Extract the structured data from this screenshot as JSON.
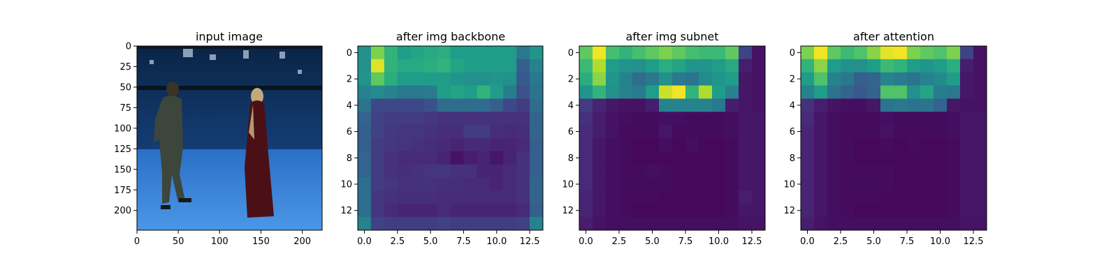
{
  "chart_data": [
    {
      "type": "image",
      "title": "input image",
      "xlim": [
        0,
        224
      ],
      "ylim": [
        224,
        0
      ],
      "xticks": [
        0,
        50,
        100,
        150,
        200
      ],
      "yticks": [
        0,
        25,
        50,
        75,
        100,
        125,
        150,
        175,
        200
      ],
      "xtick_labels": [
        "0",
        "50",
        "100",
        "150",
        "200"
      ],
      "ytick_labels": [
        "0",
        "25",
        "50",
        "75",
        "100",
        "125",
        "150",
        "175",
        "200"
      ],
      "colors": {
        "wall": "#0c2b55",
        "floor": "#2c74cc",
        "floor_light": "#4b97e6",
        "rig": "#0a1420"
      }
    },
    {
      "type": "heatmap",
      "title": "after img backbone",
      "colormap": "viridis",
      "xlim": [
        -0.5,
        13.5
      ],
      "ylim": [
        13.5,
        -0.5
      ],
      "xticks": [
        0,
        2.5,
        5,
        7.5,
        10,
        12.5
      ],
      "yticks": [
        0,
        2,
        4,
        6,
        8,
        10,
        12
      ],
      "xtick_labels": [
        "0.0",
        "2.5",
        "5.0",
        "7.5",
        "10.0",
        "12.5"
      ],
      "ytick_labels": [
        "0",
        "2",
        "4",
        "6",
        "8",
        "10",
        "12"
      ],
      "values": [
        [
          0.5,
          0.8,
          0.65,
          0.55,
          0.58,
          0.6,
          0.62,
          0.55,
          0.55,
          0.55,
          0.55,
          0.55,
          0.4,
          0.52
        ],
        [
          0.5,
          0.95,
          0.65,
          0.6,
          0.6,
          0.62,
          0.65,
          0.58,
          0.56,
          0.55,
          0.55,
          0.55,
          0.3,
          0.45
        ],
        [
          0.52,
          0.75,
          0.62,
          0.55,
          0.55,
          0.55,
          0.55,
          0.52,
          0.5,
          0.5,
          0.52,
          0.5,
          0.28,
          0.4
        ],
        [
          0.45,
          0.48,
          0.45,
          0.4,
          0.4,
          0.42,
          0.55,
          0.58,
          0.55,
          0.65,
          0.55,
          0.42,
          0.25,
          0.38
        ],
        [
          0.38,
          0.22,
          0.22,
          0.22,
          0.22,
          0.25,
          0.35,
          0.35,
          0.35,
          0.35,
          0.3,
          0.22,
          0.18,
          0.35
        ],
        [
          0.32,
          0.2,
          0.18,
          0.18,
          0.18,
          0.16,
          0.14,
          0.14,
          0.14,
          0.14,
          0.14,
          0.14,
          0.14,
          0.32
        ],
        [
          0.3,
          0.2,
          0.17,
          0.15,
          0.15,
          0.14,
          0.13,
          0.13,
          0.18,
          0.18,
          0.13,
          0.12,
          0.13,
          0.32
        ],
        [
          0.3,
          0.18,
          0.16,
          0.15,
          0.14,
          0.13,
          0.12,
          0.1,
          0.12,
          0.12,
          0.1,
          0.1,
          0.12,
          0.3
        ],
        [
          0.32,
          0.18,
          0.14,
          0.12,
          0.12,
          0.12,
          0.1,
          0.05,
          0.08,
          0.1,
          0.06,
          0.1,
          0.14,
          0.3
        ],
        [
          0.32,
          0.18,
          0.14,
          0.13,
          0.14,
          0.15,
          0.16,
          0.14,
          0.14,
          0.1,
          0.1,
          0.12,
          0.14,
          0.3
        ],
        [
          0.36,
          0.18,
          0.16,
          0.14,
          0.14,
          0.14,
          0.13,
          0.13,
          0.12,
          0.12,
          0.1,
          0.12,
          0.14,
          0.32
        ],
        [
          0.36,
          0.16,
          0.14,
          0.13,
          0.13,
          0.13,
          0.12,
          0.12,
          0.12,
          0.12,
          0.12,
          0.12,
          0.14,
          0.32
        ],
        [
          0.36,
          0.16,
          0.12,
          0.1,
          0.1,
          0.1,
          0.12,
          0.1,
          0.1,
          0.1,
          0.1,
          0.1,
          0.12,
          0.3
        ],
        [
          0.45,
          0.2,
          0.18,
          0.18,
          0.18,
          0.18,
          0.2,
          0.18,
          0.18,
          0.18,
          0.18,
          0.18,
          0.2,
          0.45
        ]
      ]
    },
    {
      "type": "heatmap",
      "title": "after img subnet",
      "colormap": "viridis",
      "xlim": [
        -0.5,
        13.5
      ],
      "ylim": [
        13.5,
        -0.5
      ],
      "xticks": [
        0,
        2.5,
        5,
        7.5,
        10,
        12.5
      ],
      "yticks": [
        0,
        2,
        4,
        6,
        8,
        10,
        12
      ],
      "xtick_labels": [
        "0.0",
        "2.5",
        "5.0",
        "7.5",
        "10.0",
        "12.5"
      ],
      "ytick_labels": [
        "0",
        "2",
        "4",
        "6",
        "8",
        "10",
        "12"
      ],
      "values": [
        [
          0.75,
          0.98,
          0.7,
          0.65,
          0.7,
          0.75,
          0.8,
          0.75,
          0.7,
          0.68,
          0.68,
          0.75,
          0.2,
          0.05
        ],
        [
          0.68,
          0.88,
          0.55,
          0.52,
          0.5,
          0.55,
          0.62,
          0.58,
          0.52,
          0.52,
          0.55,
          0.6,
          0.08,
          0.05
        ],
        [
          0.62,
          0.82,
          0.52,
          0.45,
          0.35,
          0.4,
          0.5,
          0.4,
          0.38,
          0.48,
          0.52,
          0.55,
          0.06,
          0.05
        ],
        [
          0.52,
          0.65,
          0.5,
          0.45,
          0.42,
          0.55,
          0.92,
          0.98,
          0.65,
          0.88,
          0.55,
          0.45,
          0.06,
          0.05
        ],
        [
          0.18,
          0.1,
          0.06,
          0.05,
          0.05,
          0.08,
          0.45,
          0.45,
          0.45,
          0.45,
          0.4,
          0.08,
          0.06,
          0.05
        ],
        [
          0.14,
          0.08,
          0.05,
          0.04,
          0.03,
          0.03,
          0.04,
          0.04,
          0.03,
          0.03,
          0.03,
          0.04,
          0.06,
          0.06
        ],
        [
          0.12,
          0.08,
          0.05,
          0.03,
          0.03,
          0.03,
          0.06,
          0.03,
          0.03,
          0.03,
          0.03,
          0.04,
          0.06,
          0.06
        ],
        [
          0.12,
          0.06,
          0.04,
          0.03,
          0.02,
          0.02,
          0.04,
          0.02,
          0.04,
          0.02,
          0.02,
          0.03,
          0.06,
          0.06
        ],
        [
          0.12,
          0.06,
          0.04,
          0.03,
          0.02,
          0.02,
          0.02,
          0.02,
          0.02,
          0.02,
          0.02,
          0.03,
          0.06,
          0.06
        ],
        [
          0.12,
          0.06,
          0.04,
          0.03,
          0.03,
          0.04,
          0.03,
          0.02,
          0.02,
          0.02,
          0.02,
          0.03,
          0.06,
          0.06
        ],
        [
          0.12,
          0.06,
          0.04,
          0.03,
          0.03,
          0.03,
          0.03,
          0.02,
          0.02,
          0.02,
          0.02,
          0.03,
          0.06,
          0.06
        ],
        [
          0.1,
          0.06,
          0.04,
          0.03,
          0.03,
          0.03,
          0.02,
          0.02,
          0.02,
          0.02,
          0.02,
          0.03,
          0.08,
          0.06
        ],
        [
          0.1,
          0.06,
          0.04,
          0.03,
          0.02,
          0.02,
          0.02,
          0.02,
          0.02,
          0.02,
          0.02,
          0.03,
          0.06,
          0.06
        ],
        [
          0.08,
          0.05,
          0.04,
          0.04,
          0.04,
          0.04,
          0.04,
          0.04,
          0.04,
          0.04,
          0.04,
          0.04,
          0.05,
          0.05
        ]
      ]
    },
    {
      "type": "heatmap",
      "title": "after attention",
      "colormap": "viridis",
      "xlim": [
        -0.5,
        13.5
      ],
      "ylim": [
        13.5,
        -0.5
      ],
      "xticks": [
        0,
        2.5,
        5,
        7.5,
        10,
        12.5
      ],
      "yticks": [
        0,
        2,
        4,
        6,
        8,
        10,
        12
      ],
      "xtick_labels": [
        "0.0",
        "2.5",
        "5.0",
        "7.5",
        "10.0",
        "12.5"
      ],
      "ytick_labels": [
        "0",
        "2",
        "4",
        "6",
        "8",
        "10",
        "12"
      ],
      "values": [
        [
          0.8,
          0.98,
          0.75,
          0.68,
          0.72,
          0.82,
          0.96,
          0.98,
          0.8,
          0.75,
          0.72,
          0.8,
          0.2,
          0.05
        ],
        [
          0.65,
          0.82,
          0.55,
          0.5,
          0.5,
          0.55,
          0.68,
          0.65,
          0.55,
          0.52,
          0.55,
          0.62,
          0.08,
          0.05
        ],
        [
          0.55,
          0.72,
          0.45,
          0.4,
          0.3,
          0.32,
          0.45,
          0.42,
          0.38,
          0.45,
          0.48,
          0.55,
          0.06,
          0.05
        ],
        [
          0.45,
          0.55,
          0.38,
          0.32,
          0.28,
          0.32,
          0.72,
          0.72,
          0.5,
          0.58,
          0.42,
          0.4,
          0.06,
          0.05
        ],
        [
          0.14,
          0.08,
          0.05,
          0.04,
          0.04,
          0.06,
          0.38,
          0.4,
          0.38,
          0.38,
          0.32,
          0.06,
          0.05,
          0.05
        ],
        [
          0.12,
          0.06,
          0.04,
          0.03,
          0.03,
          0.03,
          0.04,
          0.03,
          0.03,
          0.03,
          0.03,
          0.04,
          0.06,
          0.06
        ],
        [
          0.1,
          0.06,
          0.04,
          0.03,
          0.03,
          0.03,
          0.05,
          0.03,
          0.03,
          0.03,
          0.03,
          0.04,
          0.06,
          0.06
        ],
        [
          0.1,
          0.06,
          0.04,
          0.03,
          0.02,
          0.02,
          0.03,
          0.02,
          0.03,
          0.02,
          0.02,
          0.03,
          0.06,
          0.06
        ],
        [
          0.1,
          0.06,
          0.04,
          0.03,
          0.02,
          0.02,
          0.02,
          0.02,
          0.02,
          0.02,
          0.02,
          0.03,
          0.06,
          0.06
        ],
        [
          0.1,
          0.06,
          0.04,
          0.03,
          0.03,
          0.03,
          0.03,
          0.02,
          0.02,
          0.02,
          0.02,
          0.03,
          0.06,
          0.06
        ],
        [
          0.1,
          0.06,
          0.04,
          0.03,
          0.03,
          0.03,
          0.03,
          0.02,
          0.02,
          0.02,
          0.02,
          0.03,
          0.06,
          0.06
        ],
        [
          0.1,
          0.06,
          0.04,
          0.03,
          0.03,
          0.03,
          0.02,
          0.02,
          0.02,
          0.02,
          0.02,
          0.03,
          0.06,
          0.06
        ],
        [
          0.1,
          0.06,
          0.04,
          0.03,
          0.02,
          0.02,
          0.02,
          0.02,
          0.02,
          0.02,
          0.02,
          0.03,
          0.06,
          0.06
        ],
        [
          0.08,
          0.05,
          0.04,
          0.04,
          0.04,
          0.04,
          0.04,
          0.04,
          0.04,
          0.04,
          0.04,
          0.04,
          0.05,
          0.05
        ]
      ]
    }
  ]
}
